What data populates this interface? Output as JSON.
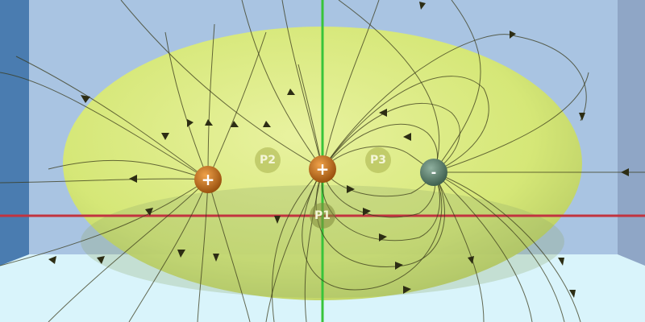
{
  "colors": {
    "background": "#a9c4e2",
    "left_wall": "#4a7cb0",
    "right_wall": "#8fa6c6",
    "floor": "#d9f4fb",
    "blob": "#e6f27a",
    "x_axis": "#c2333f",
    "y_axis": "#38c43a",
    "field_line": "#3a3a1a",
    "positive_charge": "#c9731c",
    "negative_charge": "#5e7f6e"
  },
  "charges": [
    {
      "id": "q1",
      "sign": "positive",
      "symbol": "+"
    },
    {
      "id": "q2",
      "sign": "positive",
      "symbol": "+"
    },
    {
      "id": "q3",
      "sign": "negative",
      "symbol": "-"
    }
  ],
  "probes": [
    {
      "id": "p1",
      "label": "P1"
    },
    {
      "id": "p2",
      "label": "P2"
    },
    {
      "id": "p3",
      "label": "P3"
    }
  ]
}
